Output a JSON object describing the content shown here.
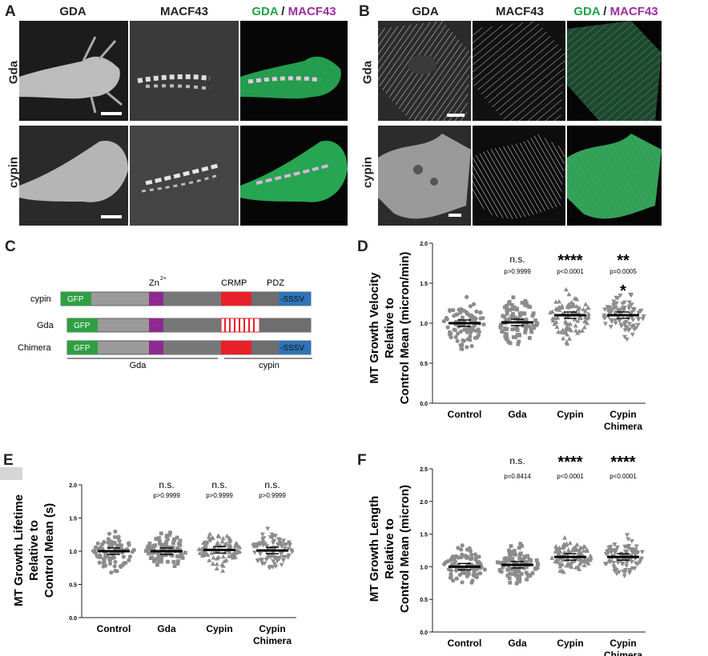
{
  "panels": {
    "A": {
      "letter": "A",
      "columns": [
        "GDA",
        "MACF43"
      ],
      "merge_a": "GDA",
      "merge_sep": " / ",
      "merge_b": "MACF43",
      "rows": [
        "Gda",
        "cypin"
      ]
    },
    "B": {
      "letter": "B",
      "columns": [
        "GDA",
        "MACF43"
      ],
      "merge_a": "GDA",
      "merge_sep": " / ",
      "merge_b": "MACF43",
      "rows": [
        "Gda",
        "cypin"
      ]
    },
    "C": {
      "letter": "C",
      "domain_labels": {
        "zn": "Zn",
        "zn_sup": "2+",
        "crmp": "CRMP",
        "pdz": "PDZ"
      },
      "constructs": [
        {
          "name": "cypin",
          "gfp": "GFP",
          "tail": "-SSSV"
        },
        {
          "name": "Gda",
          "gfp": "GFP",
          "tail": ""
        },
        {
          "name": "Chimera",
          "gfp": "GFP",
          "tail": "-SSSV"
        }
      ],
      "bracket_left": "Gda",
      "bracket_right": "cypin",
      "colors": {
        "gfp": "#2ea043",
        "zn": "#8e2a8f",
        "crmp": "#e8202a",
        "pdz": "#2f74b8",
        "body": "#9a9a9a",
        "dark": "#6e6e6e"
      }
    }
  },
  "chart_data": [
    {
      "panel": "D",
      "type": "scatter",
      "ylabel_lines": [
        "MT Growth Velocity",
        "Relative to",
        "Control Mean (micron/min)"
      ],
      "categories": [
        "Control",
        "Gda",
        "Cypin",
        "Cypin\nChimera"
      ],
      "yticks": [
        "0.0",
        "0.5",
        "1.0",
        "1.5",
        "2.0"
      ],
      "ylim": [
        0,
        2.0
      ],
      "means": [
        1.0,
        1.01,
        1.1,
        1.1
      ],
      "markers": [
        "circle",
        "square",
        "triangle",
        "triangle-down"
      ],
      "significance": [
        "",
        "n.s.",
        "****",
        "**"
      ],
      "significance2": [
        "",
        "",
        "",
        "*"
      ],
      "pvalues": [
        "",
        "p>0.9999",
        "p<0.0001",
        "p=0.0005"
      ],
      "color": "#8c8c8c"
    },
    {
      "panel": "E",
      "type": "scatter",
      "ylabel_lines": [
        "MT Growth Lifetime",
        "Relative to",
        "Control Mean (s)"
      ],
      "categories": [
        "Control",
        "Gda",
        "Cypin",
        "Cypin\nChimera"
      ],
      "yticks": [
        "0.0",
        "0.5",
        "1.0",
        "1.5",
        "2.0"
      ],
      "ylim": [
        0,
        2.0
      ],
      "means": [
        1.0,
        1.0,
        1.02,
        1.01
      ],
      "markers": [
        "circle",
        "square",
        "triangle",
        "triangle-down"
      ],
      "significance": [
        "",
        "n.s.",
        "n.s.",
        "n.s."
      ],
      "significance2": [
        "",
        "",
        "",
        ""
      ],
      "pvalues": [
        "",
        "p>0.9999",
        "p>0.9999",
        "p>0.9999"
      ],
      "color": "#8c8c8c"
    },
    {
      "panel": "F",
      "type": "scatter",
      "ylabel_lines": [
        "MT Growth Length",
        "Relative to",
        "Control Mean (micron)"
      ],
      "categories": [
        "Control",
        "Gda",
        "Cypin",
        "Cypin\nChimera"
      ],
      "yticks": [
        "0.0",
        "0.5",
        "1.0",
        "1.5",
        "2.0",
        "2.5"
      ],
      "ylim": [
        0,
        2.5
      ],
      "means": [
        1.0,
        1.03,
        1.15,
        1.15
      ],
      "markers": [
        "circle",
        "square",
        "triangle",
        "triangle-down"
      ],
      "significance": [
        "",
        "n.s.",
        "****",
        "****"
      ],
      "significance2": [
        "",
        "",
        "",
        ""
      ],
      "pvalues": [
        "",
        "p=0.8414",
        "p<0.0001",
        "p<0.0001"
      ],
      "color": "#8c8c8c"
    }
  ]
}
